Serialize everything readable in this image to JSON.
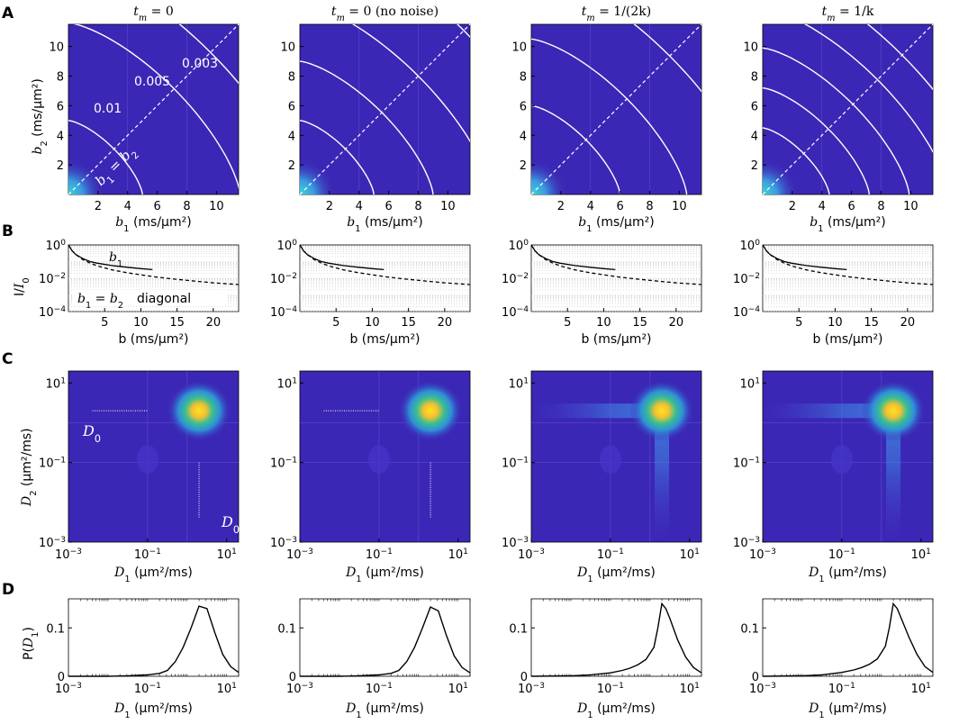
{
  "panel_labels": [
    "A",
    "B",
    "C",
    "D"
  ],
  "columns": [
    {
      "title": "t_m = 0"
    },
    {
      "title": "t_m = 0 (no noise)"
    },
    {
      "title": "t_m = 1/(2k)"
    },
    {
      "title": "t_m = 1/k"
    }
  ],
  "colors": {
    "background_map": "#3b27b5",
    "contour_line": "#ffffff",
    "peak_yellow": "#fbe31f",
    "peak_green": "#3cbf8f",
    "line": "#000000"
  },
  "chart_data": [
    {
      "type": "heatmap",
      "row": "A",
      "description_units": "b1, b2 in ms/um^2",
      "xlabel": "b_1 (ms/μm²)",
      "ylabel": "b_2 (ms/μm²)",
      "xlim": [
        0,
        11.5
      ],
      "ylim": [
        0,
        11.5
      ],
      "xticks": [
        "2",
        "4",
        "6",
        "8",
        "10"
      ],
      "yticks": [
        "2",
        "4",
        "6",
        "8",
        "10"
      ],
      "diagonal_label": "b_1 = b_2",
      "contour_labels": [
        "0.01",
        "0.005",
        "0.003"
      ],
      "contour_levels_sum_b": [
        [
          5.0,
          11.6,
          15.6,
          21.6
        ],
        [
          5.0,
          9.0,
          13.0,
          18.0
        ],
        [
          6.0,
          10.5,
          15.2,
          20.2
        ],
        [
          4.5,
          7.2,
          9.9,
          12.6,
          15.3
        ]
      ]
    },
    {
      "type": "line",
      "row": "B",
      "xlabel": "b (ms/μm²)",
      "ylabel": "I/I_0",
      "xlim": [
        0,
        23.5
      ],
      "ylim": [
        0.0001,
        1
      ],
      "yscale": "log",
      "xticks": [
        "5",
        "10",
        "15",
        "20"
      ],
      "yticks": [
        "10^0",
        "10^-2",
        "10^-4"
      ],
      "series_labels": [
        "b_1",
        "b_1 = b_2",
        "diagonal"
      ],
      "series": [
        {
          "style": "solid",
          "x": [
            0,
            0.5,
            1,
            2,
            3,
            4,
            6,
            8,
            10,
            11.6
          ],
          "y": [
            1,
            0.45,
            0.27,
            0.15,
            0.1,
            0.08,
            0.058,
            0.046,
            0.038,
            0.033
          ]
        },
        {
          "style": "dashed",
          "x": [
            0,
            0.5,
            1,
            2,
            3,
            4,
            6,
            8,
            10,
            12,
            14,
            16,
            18,
            20,
            23.5
          ],
          "y": [
            1,
            0.45,
            0.27,
            0.13,
            0.08,
            0.055,
            0.032,
            0.022,
            0.016,
            0.012,
            0.0095,
            0.0078,
            0.0064,
            0.0053,
            0.0042
          ]
        }
      ]
    },
    {
      "type": "heatmap",
      "row": "C",
      "xlabel": "D_1 (μm²/ms)",
      "ylabel": "D_2 (μm²/ms)",
      "xscale": "log",
      "yscale": "log",
      "xlim": [
        0.001,
        20
      ],
      "ylim": [
        0.001,
        20
      ],
      "xticks": [
        "10^-3",
        "10^-1",
        "10^1"
      ],
      "yticks": [
        "10^1",
        "10^-1",
        "10^-3"
      ],
      "D0_label": "D_0",
      "peak": {
        "D1": 2,
        "D2": 2
      },
      "D0_markers": [
        true,
        true,
        false,
        false
      ],
      "streaks": [
        false,
        false,
        true,
        true
      ]
    },
    {
      "type": "line",
      "row": "D",
      "xlabel": "D_1 (μm²/ms)",
      "ylabel": "P(D_1)",
      "xscale": "log",
      "xlim": [
        0.001,
        20
      ],
      "ylim": [
        0,
        0.16
      ],
      "xticks": [
        "10^-3",
        "10^-1",
        "10^1"
      ],
      "yticks": [
        "0",
        "0.1"
      ],
      "series": [
        {
          "logx": [
            -3,
            -2,
            -1.5,
            -1,
            -0.7,
            -0.5,
            -0.3,
            -0.1,
            0.1,
            0.3,
            0.5,
            0.7,
            0.9,
            1.1,
            1.3
          ],
          "y": [
            0,
            0,
            0.001,
            0.003,
            0.006,
            0.012,
            0.03,
            0.06,
            0.1,
            0.145,
            0.14,
            0.09,
            0.045,
            0.02,
            0.008
          ]
        },
        {
          "logx": [
            -3,
            -2,
            -1.5,
            -1,
            -0.7,
            -0.5,
            -0.3,
            -0.1,
            0.1,
            0.3,
            0.5,
            0.7,
            0.9,
            1.1,
            1.3
          ],
          "y": [
            0,
            0,
            0.001,
            0.003,
            0.006,
            0.012,
            0.03,
            0.06,
            0.1,
            0.143,
            0.135,
            0.085,
            0.042,
            0.018,
            0.007
          ]
        },
        {
          "logx": [
            -3,
            -2,
            -1.5,
            -1,
            -0.7,
            -0.5,
            -0.3,
            -0.1,
            0.1,
            0.2,
            0.3,
            0.4,
            0.5,
            0.7,
            0.9,
            1.1,
            1.3
          ],
          "y": [
            0,
            0.001,
            0.003,
            0.007,
            0.012,
            0.017,
            0.024,
            0.035,
            0.06,
            0.1,
            0.15,
            0.14,
            0.12,
            0.075,
            0.04,
            0.018,
            0.007
          ]
        },
        {
          "logx": [
            -3,
            -2,
            -1.5,
            -1,
            -0.7,
            -0.5,
            -0.3,
            -0.1,
            0.1,
            0.2,
            0.3,
            0.4,
            0.5,
            0.7,
            0.9,
            1.1,
            1.3
          ],
          "y": [
            0,
            0.001,
            0.003,
            0.008,
            0.013,
            0.018,
            0.025,
            0.036,
            0.062,
            0.1,
            0.15,
            0.14,
            0.12,
            0.08,
            0.045,
            0.02,
            0.008
          ]
        }
      ]
    }
  ]
}
